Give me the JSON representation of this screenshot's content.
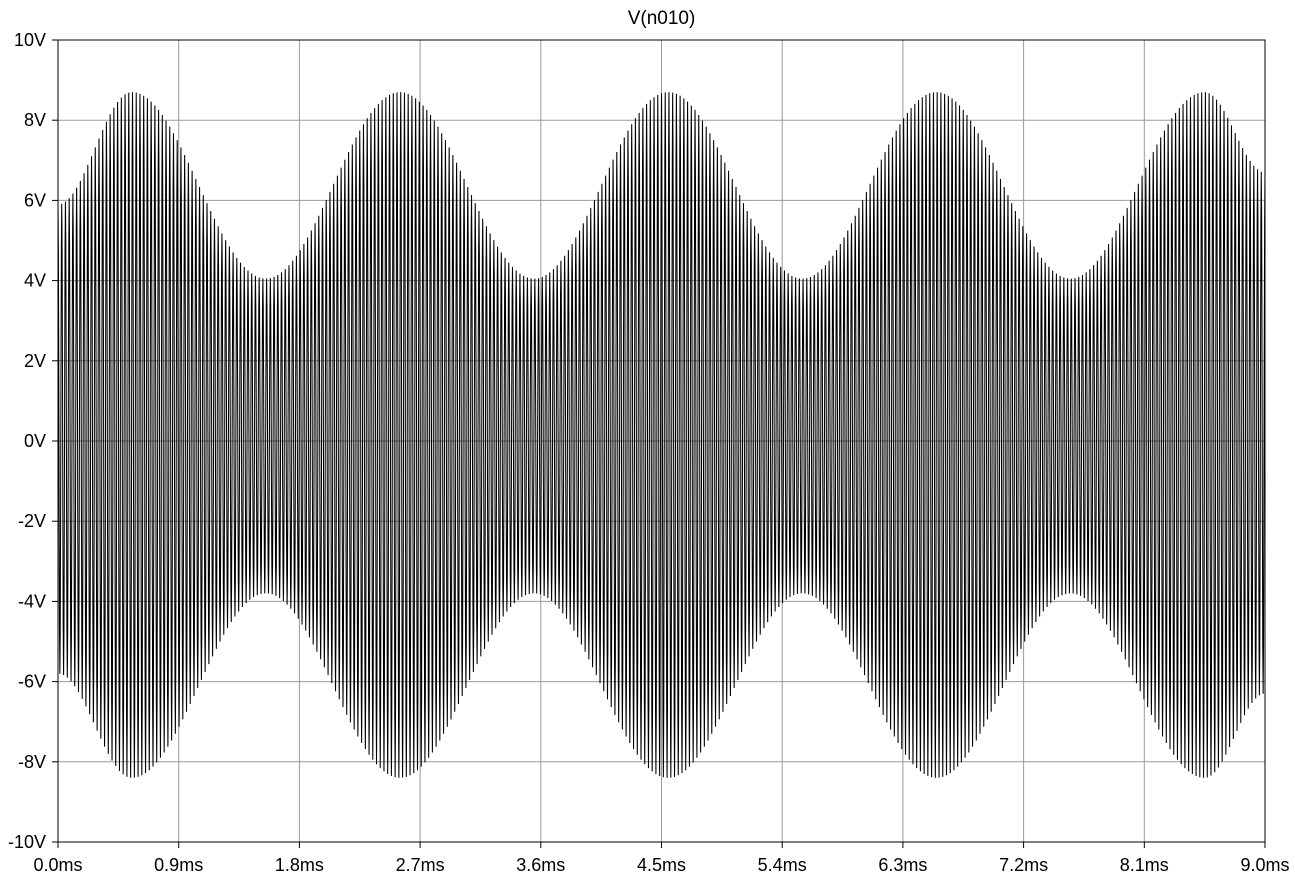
{
  "chart_data": {
    "type": "line",
    "title": "V(n010)",
    "xlabel": "",
    "ylabel": "",
    "x_unit": "ms",
    "y_unit": "V",
    "xlim": [
      0.0,
      9.0
    ],
    "ylim": [
      -10,
      10
    ],
    "x_ticks": [
      "0.0ms",
      "0.9ms",
      "1.8ms",
      "2.7ms",
      "3.6ms",
      "4.5ms",
      "5.4ms",
      "6.3ms",
      "7.2ms",
      "8.1ms",
      "9.0ms"
    ],
    "y_ticks": [
      "10V",
      "8V",
      "6V",
      "4V",
      "2V",
      "0V",
      "-2V",
      "-4V",
      "-6V",
      "-8V",
      "-10V"
    ],
    "grid": true,
    "series": [
      {
        "name": "V(n010)",
        "color": "#000000",
        "kind": "amplitude-modulated sine",
        "upper_envelope": {
          "x": [
            0.0,
            0.55,
            1.55,
            2.55,
            3.55,
            4.55,
            5.55,
            6.55,
            7.55,
            8.55,
            9.0
          ],
          "y": [
            5.9,
            8.7,
            4.05,
            8.7,
            4.05,
            8.7,
            4.05,
            8.7,
            4.05,
            8.7,
            6.7
          ]
        },
        "lower_envelope": {
          "x": [
            0.0,
            0.55,
            1.55,
            2.55,
            3.55,
            4.55,
            5.55,
            6.55,
            7.55,
            8.55,
            9.0
          ],
          "y": [
            -5.8,
            -8.4,
            -3.8,
            -8.4,
            -3.8,
            -8.4,
            -3.8,
            -8.4,
            -3.8,
            -8.4,
            -6.3
          ]
        },
        "carrier_cycles_per_ms": 36
      }
    ]
  }
}
